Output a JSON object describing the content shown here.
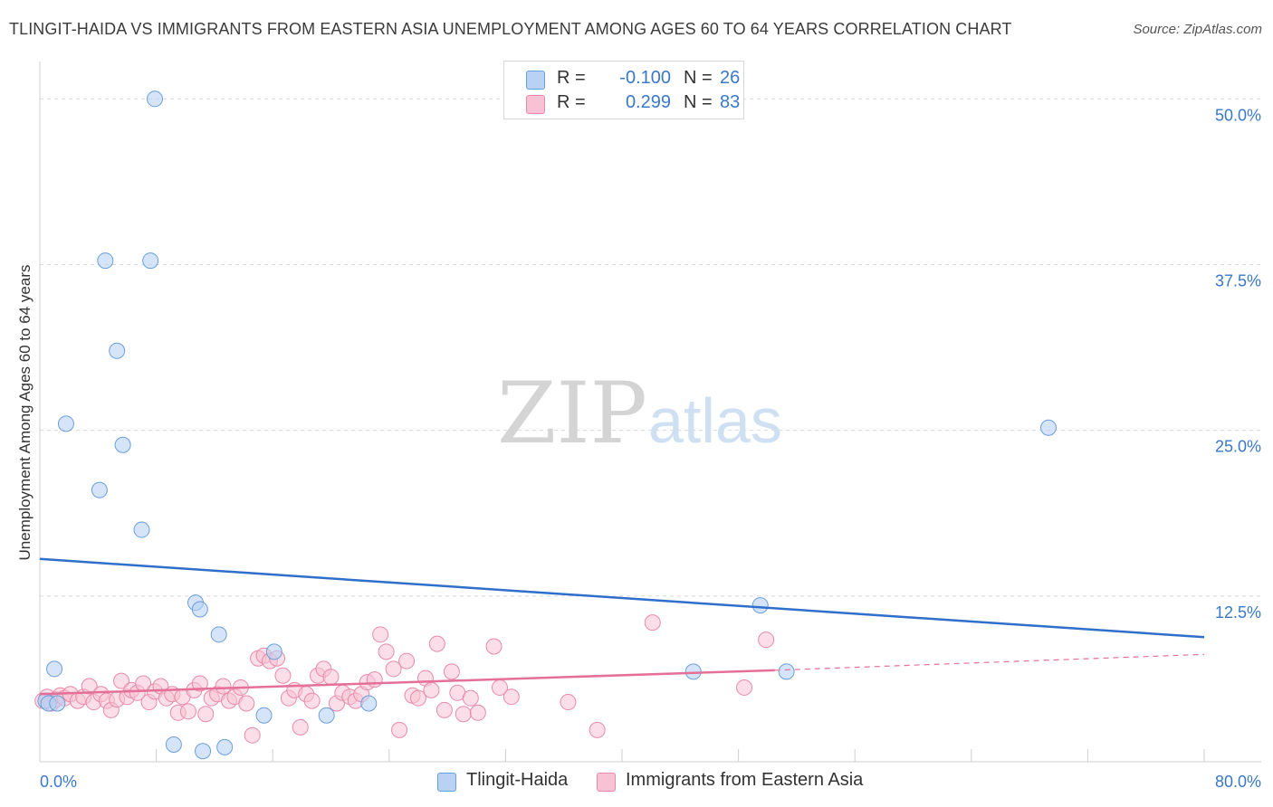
{
  "title": "TLINGIT-HAIDA VS IMMIGRANTS FROM EASTERN ASIA UNEMPLOYMENT AMONG AGES 60 TO 64 YEARS CORRELATION CHART",
  "source": "Source: ZipAtlas.com",
  "watermark": {
    "zip": "ZIP",
    "atlas": "atlas"
  },
  "legend": {
    "rows": [
      {
        "r_label": "R =",
        "r_value": "-0.100",
        "n_label": "N =",
        "n_value": "26"
      },
      {
        "r_label": "R =",
        "r_value": "0.299",
        "n_label": "N =",
        "n_value": "83"
      }
    ]
  },
  "bottom_legend": [
    "Tlingit-Haida",
    "Immigrants from Eastern Asia"
  ],
  "chart_data": {
    "type": "scatter",
    "title": "TLINGIT-HAIDA VS IMMIGRANTS FROM EASTERN ASIA UNEMPLOYMENT AMONG AGES 60 TO 64 YEARS CORRELATION CHART",
    "xlabel": "",
    "ylabel": "Unemployment Among Ages 60 to 64 years",
    "xlim": [
      0,
      80
    ],
    "ylim": [
      0,
      52
    ],
    "x_tick_labels": [
      "0.0%",
      "80.0%"
    ],
    "y_ticks": [
      12.5,
      25.0,
      37.5,
      50.0
    ],
    "y_tick_labels": [
      "12.5%",
      "25.0%",
      "37.5%",
      "50.0%"
    ],
    "colors": {
      "blue_fill": "#b9d2f3",
      "blue_stroke": "#6a9fdc",
      "blue_line": "#2f6fcc",
      "pink_fill": "#f8c2d4",
      "pink_stroke": "#e88aa9",
      "pink_line": "#e4709a",
      "axis_text": "#3a78c9",
      "grid": "#d9d9d9"
    },
    "series": [
      {
        "name": "Tlingit-Haida",
        "R": -0.1,
        "N": 26,
        "trend": {
          "x": [
            0,
            80
          ],
          "y": [
            15.3,
            9.4
          ],
          "style": "solid"
        },
        "points": [
          [
            0.4,
            4.6
          ],
          [
            0.6,
            4.4
          ],
          [
            1.0,
            7.0
          ],
          [
            1.8,
            25.5
          ],
          [
            4.5,
            37.8
          ],
          [
            5.3,
            31.0
          ],
          [
            5.7,
            23.9
          ],
          [
            4.1,
            20.5
          ],
          [
            7.0,
            17.5
          ],
          [
            7.9,
            50.0
          ],
          [
            7.6,
            37.8
          ],
          [
            10.7,
            12.0
          ],
          [
            11.0,
            11.5
          ],
          [
            12.3,
            9.6
          ],
          [
            9.2,
            1.3
          ],
          [
            11.2,
            0.8
          ],
          [
            12.7,
            1.1
          ],
          [
            15.4,
            3.5
          ],
          [
            16.1,
            8.3
          ],
          [
            19.7,
            3.5
          ],
          [
            22.6,
            4.4
          ],
          [
            44.9,
            6.8
          ],
          [
            49.5,
            11.8
          ],
          [
            51.3,
            6.8
          ],
          [
            69.3,
            25.2
          ],
          [
            1.2,
            4.4
          ]
        ]
      },
      {
        "name": "Immigrants from Eastern Asia",
        "R": 0.299,
        "N": 83,
        "trend": {
          "x": [
            0,
            50.5
          ],
          "y": [
            5.1,
            6.9
          ],
          "style": "solid"
        },
        "trend_ext": {
          "x": [
            50.5,
            80
          ],
          "y": [
            6.9,
            8.1
          ],
          "style": "dashed"
        },
        "points": [
          [
            0.2,
            4.6
          ],
          [
            0.5,
            4.9
          ],
          [
            0.8,
            4.4
          ],
          [
            1.1,
            4.7
          ],
          [
            1.4,
            5.0
          ],
          [
            1.7,
            4.8
          ],
          [
            2.1,
            5.1
          ],
          [
            2.6,
            4.6
          ],
          [
            3.0,
            4.9
          ],
          [
            3.4,
            5.7
          ],
          [
            3.7,
            4.5
          ],
          [
            4.2,
            5.1
          ],
          [
            4.6,
            4.6
          ],
          [
            4.9,
            3.9
          ],
          [
            5.3,
            4.7
          ],
          [
            5.6,
            6.1
          ],
          [
            6.0,
            4.9
          ],
          [
            6.3,
            5.4
          ],
          [
            6.7,
            5.2
          ],
          [
            7.1,
            5.9
          ],
          [
            7.5,
            4.5
          ],
          [
            7.9,
            5.3
          ],
          [
            8.3,
            5.7
          ],
          [
            8.7,
            4.8
          ],
          [
            9.1,
            5.1
          ],
          [
            9.5,
            3.7
          ],
          [
            9.8,
            4.9
          ],
          [
            10.2,
            3.8
          ],
          [
            10.6,
            5.4
          ],
          [
            11.0,
            5.9
          ],
          [
            11.4,
            3.6
          ],
          [
            11.8,
            4.8
          ],
          [
            12.2,
            5.1
          ],
          [
            12.6,
            5.7
          ],
          [
            13.0,
            4.6
          ],
          [
            13.4,
            4.9
          ],
          [
            13.8,
            5.6
          ],
          [
            14.2,
            4.4
          ],
          [
            14.6,
            2.0
          ],
          [
            15.0,
            7.8
          ],
          [
            15.4,
            8.0
          ],
          [
            15.8,
            7.6
          ],
          [
            16.3,
            7.8
          ],
          [
            16.7,
            6.5
          ],
          [
            17.1,
            4.8
          ],
          [
            17.5,
            5.4
          ],
          [
            17.9,
            2.6
          ],
          [
            18.3,
            5.1
          ],
          [
            18.7,
            4.6
          ],
          [
            19.1,
            6.5
          ],
          [
            19.5,
            7.0
          ],
          [
            20.0,
            6.4
          ],
          [
            20.4,
            4.4
          ],
          [
            20.8,
            5.2
          ],
          [
            21.3,
            4.9
          ],
          [
            21.7,
            4.6
          ],
          [
            22.1,
            5.1
          ],
          [
            22.5,
            6.0
          ],
          [
            23.0,
            6.2
          ],
          [
            23.4,
            9.6
          ],
          [
            23.8,
            8.3
          ],
          [
            24.3,
            7.0
          ],
          [
            24.7,
            2.4
          ],
          [
            25.2,
            7.6
          ],
          [
            25.6,
            5.0
          ],
          [
            26.0,
            4.8
          ],
          [
            26.5,
            6.3
          ],
          [
            26.9,
            5.4
          ],
          [
            27.3,
            8.9
          ],
          [
            27.8,
            3.9
          ],
          [
            28.3,
            6.8
          ],
          [
            28.7,
            5.2
          ],
          [
            29.1,
            3.6
          ],
          [
            29.6,
            4.8
          ],
          [
            30.1,
            3.7
          ],
          [
            31.2,
            8.7
          ],
          [
            31.6,
            5.6
          ],
          [
            32.4,
            4.9
          ],
          [
            36.3,
            4.5
          ],
          [
            38.3,
            2.4
          ],
          [
            42.1,
            10.5
          ],
          [
            48.4,
            5.6
          ],
          [
            49.9,
            9.2
          ]
        ]
      }
    ]
  }
}
